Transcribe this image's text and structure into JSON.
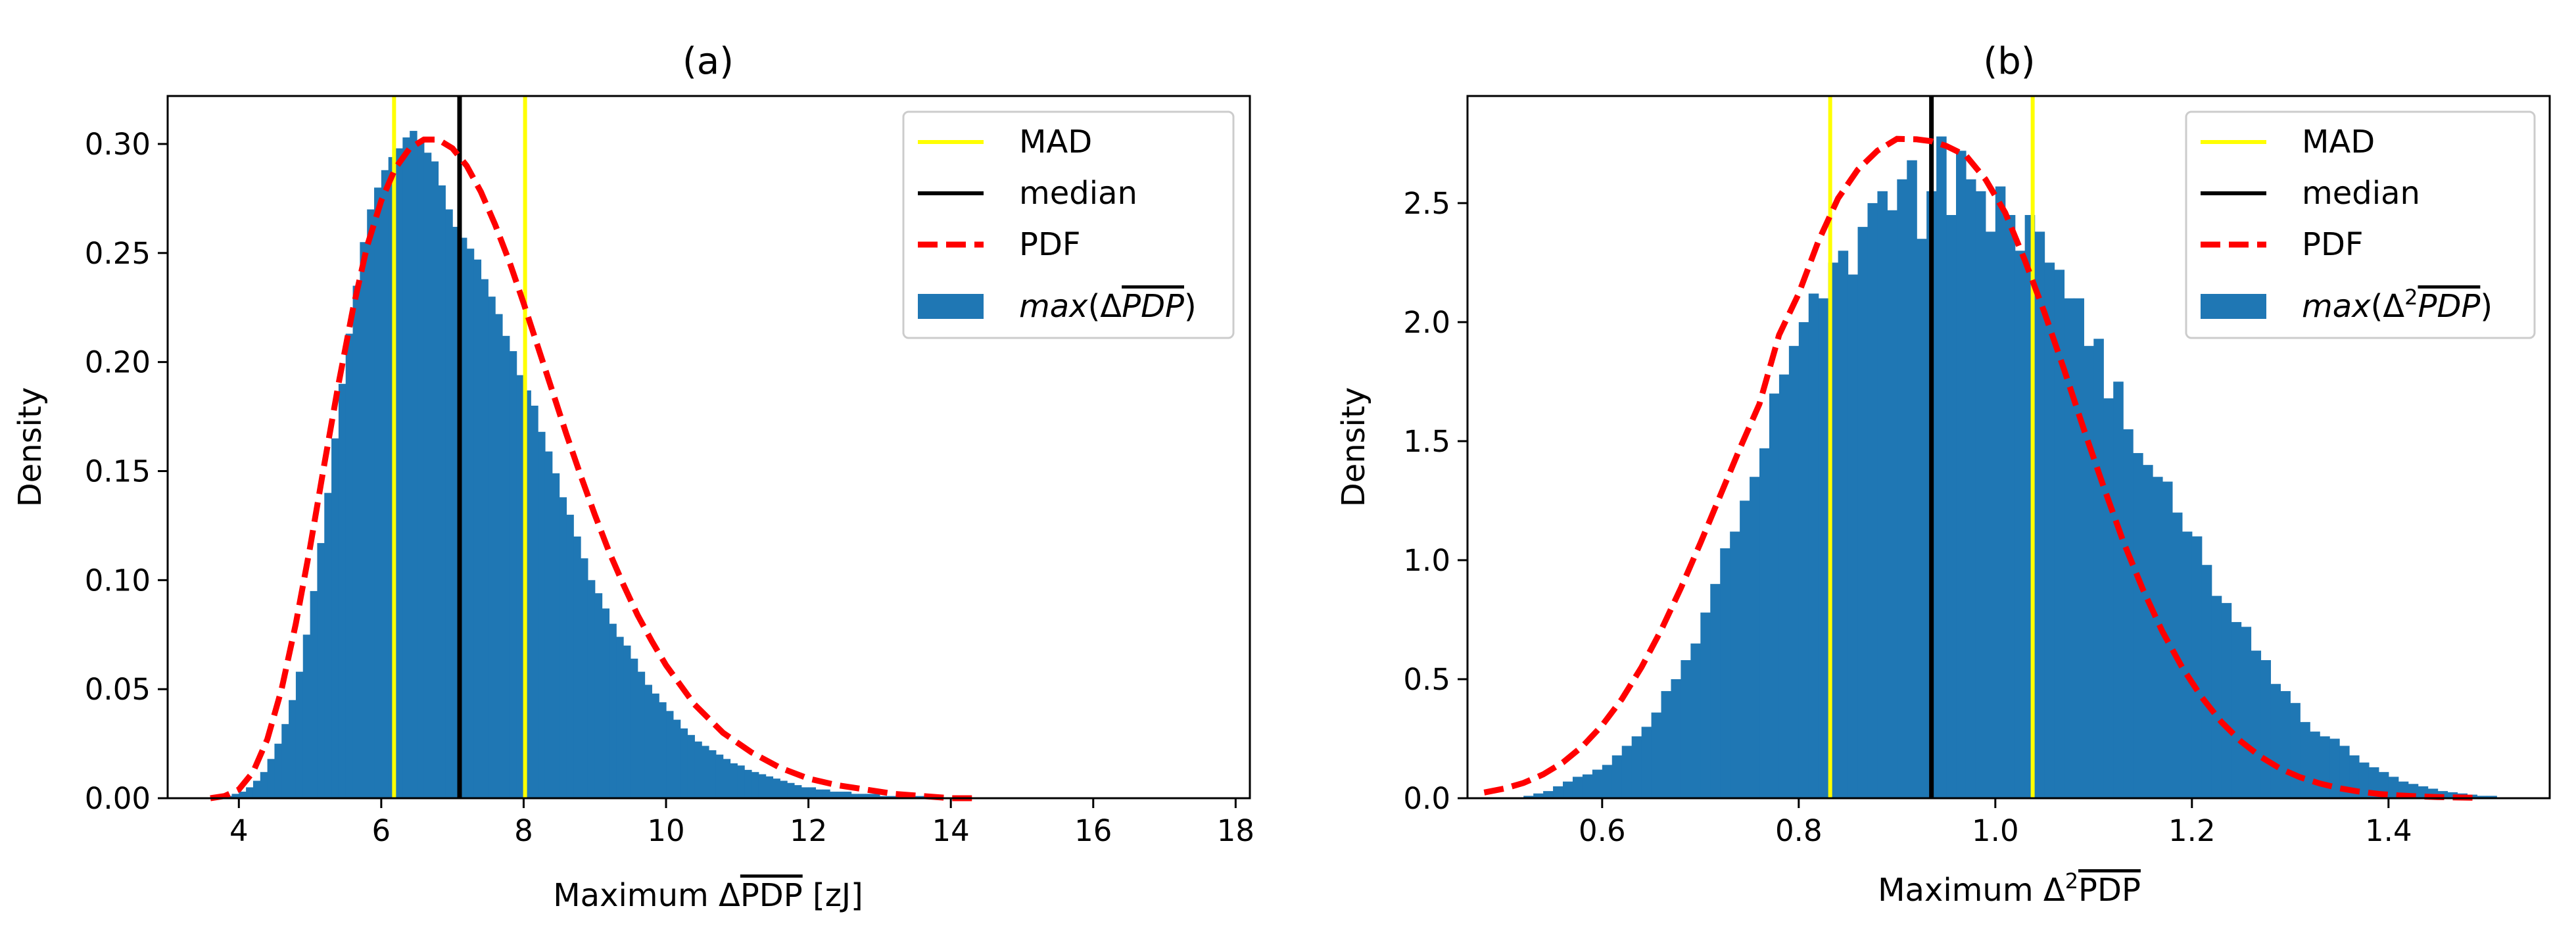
{
  "chart_data": [
    {
      "type": "histogram",
      "title": "(a)",
      "xlabel": "Maximum ΔPDP [zJ]",
      "xlabel_parts": {
        "prefix": "Maximum Δ",
        "sup": "",
        "over": "PDP",
        "suffix": " [zJ]"
      },
      "ylabel": "Density",
      "xlim": [
        3.0,
        18.2
      ],
      "ylim": [
        0,
        0.322
      ],
      "xticks": [
        4,
        6,
        8,
        10,
        12,
        14,
        16,
        18
      ],
      "xtick_labels": [
        "4",
        "6",
        "8",
        "10",
        "12",
        "14",
        "16",
        "18"
      ],
      "yticks": [
        0.0,
        0.05,
        0.1,
        0.15,
        0.2,
        0.25,
        0.3
      ],
      "ytick_labels": [
        "0.00",
        "0.05",
        "0.10",
        "0.15",
        "0.20",
        "0.25",
        "0.30"
      ],
      "hist": {
        "bin_start": 3.7,
        "bin_width": 0.1,
        "density": [
          0.0,
          0.001,
          0.002,
          0.003,
          0.005,
          0.008,
          0.012,
          0.018,
          0.025,
          0.034,
          0.045,
          0.058,
          0.075,
          0.095,
          0.117,
          0.14,
          0.165,
          0.19,
          0.213,
          0.235,
          0.255,
          0.27,
          0.28,
          0.288,
          0.294,
          0.298,
          0.303,
          0.306,
          0.301,
          0.296,
          0.292,
          0.281,
          0.27,
          0.262,
          0.257,
          0.252,
          0.247,
          0.238,
          0.23,
          0.222,
          0.212,
          0.205,
          0.194,
          0.187,
          0.18,
          0.168,
          0.159,
          0.149,
          0.138,
          0.13,
          0.12,
          0.11,
          0.1,
          0.094,
          0.087,
          0.08,
          0.074,
          0.07,
          0.064,
          0.058,
          0.052,
          0.048,
          0.044,
          0.04,
          0.036,
          0.032,
          0.029,
          0.026,
          0.024,
          0.022,
          0.02,
          0.018,
          0.016,
          0.015,
          0.013,
          0.012,
          0.011,
          0.01,
          0.009,
          0.008,
          0.007,
          0.006,
          0.005,
          0.005,
          0.004,
          0.004,
          0.003,
          0.003,
          0.003,
          0.002,
          0.002,
          0.002,
          0.002,
          0.001,
          0.001,
          0.001,
          0.001,
          0.001,
          0.001,
          0.001,
          0.001
        ]
      },
      "pdf": {
        "x": [
          3.6,
          3.8,
          4.0,
          4.2,
          4.4,
          4.6,
          4.8,
          5.0,
          5.2,
          5.4,
          5.6,
          5.8,
          6.0,
          6.2,
          6.4,
          6.6,
          6.8,
          7.0,
          7.2,
          7.4,
          7.6,
          7.8,
          8.0,
          8.2,
          8.4,
          8.6,
          8.8,
          9.0,
          9.2,
          9.4,
          9.6,
          9.8,
          10.0,
          10.4,
          10.8,
          11.2,
          11.6,
          12.0,
          12.4,
          12.8,
          13.2,
          13.6,
          14.0,
          14.3
        ],
        "y": [
          0.0,
          0.001,
          0.004,
          0.012,
          0.027,
          0.05,
          0.08,
          0.115,
          0.153,
          0.19,
          0.224,
          0.253,
          0.274,
          0.289,
          0.298,
          0.302,
          0.302,
          0.298,
          0.29,
          0.278,
          0.263,
          0.246,
          0.227,
          0.207,
          0.187,
          0.167,
          0.148,
          0.13,
          0.113,
          0.098,
          0.084,
          0.072,
          0.061,
          0.043,
          0.03,
          0.021,
          0.014,
          0.009,
          0.006,
          0.004,
          0.002,
          0.001,
          0.0,
          0.0
        ]
      },
      "median": 7.1,
      "mad": [
        6.18,
        8.02
      ],
      "legend": {
        "position": "top-right",
        "entries": [
          "MAD",
          "median",
          "PDF"
        ],
        "hist_label_parts": {
          "pre": "max",
          "open": "(Δ",
          "sup": "",
          "over": "PDP",
          "close": ")"
        }
      },
      "colors": {
        "bars": "#1f77b4",
        "median": "#000000",
        "mad": "#ffff00",
        "pdf": "#ff0000"
      }
    },
    {
      "type": "histogram",
      "title": "(b)",
      "xlabel": "Maximum Δ²PDP",
      "xlabel_parts": {
        "prefix": "Maximum Δ",
        "sup": "2",
        "over": "PDP",
        "suffix": ""
      },
      "ylabel": "Density",
      "xlim": [
        0.463,
        1.564
      ],
      "ylim": [
        0,
        2.95
      ],
      "xticks": [
        0.6,
        0.8,
        1.0,
        1.2,
        1.4
      ],
      "xtick_labels": [
        "0.6",
        "0.8",
        "1.0",
        "1.2",
        "1.4"
      ],
      "yticks": [
        0.0,
        0.5,
        1.0,
        1.5,
        2.0,
        2.5
      ],
      "ytick_labels": [
        "0.0",
        "0.5",
        "1.0",
        "1.5",
        "2.0",
        "2.5"
      ],
      "hist": {
        "bin_start": 0.52,
        "bin_width": 0.01,
        "density": [
          0.01,
          0.02,
          0.03,
          0.05,
          0.07,
          0.09,
          0.1,
          0.12,
          0.14,
          0.18,
          0.22,
          0.26,
          0.3,
          0.36,
          0.45,
          0.5,
          0.58,
          0.65,
          0.78,
          0.9,
          1.05,
          1.12,
          1.25,
          1.35,
          1.47,
          1.7,
          1.78,
          1.9,
          2.0,
          2.12,
          2.1,
          2.25,
          2.3,
          2.2,
          2.4,
          2.5,
          2.55,
          2.47,
          2.6,
          2.68,
          2.35,
          2.55,
          2.78,
          2.45,
          2.72,
          2.6,
          2.55,
          2.38,
          2.57,
          2.45,
          2.3,
          2.45,
          2.38,
          2.25,
          2.22,
          2.1,
          2.1,
          1.9,
          1.93,
          1.68,
          1.75,
          1.55,
          1.45,
          1.4,
          1.35,
          1.33,
          1.2,
          1.12,
          1.1,
          0.98,
          0.85,
          0.82,
          0.74,
          0.72,
          0.62,
          0.58,
          0.48,
          0.45,
          0.4,
          0.32,
          0.28,
          0.26,
          0.25,
          0.22,
          0.18,
          0.15,
          0.13,
          0.11,
          0.09,
          0.07,
          0.06,
          0.05,
          0.04,
          0.03,
          0.025,
          0.02,
          0.015,
          0.01,
          0.01
        ]
      },
      "pdf": {
        "x": [
          0.48,
          0.5,
          0.52,
          0.54,
          0.56,
          0.58,
          0.6,
          0.62,
          0.64,
          0.66,
          0.68,
          0.7,
          0.72,
          0.74,
          0.76,
          0.78,
          0.8,
          0.82,
          0.84,
          0.86,
          0.88,
          0.9,
          0.92,
          0.935,
          0.95,
          0.97,
          0.99,
          1.01,
          1.03,
          1.05,
          1.07,
          1.09,
          1.11,
          1.13,
          1.15,
          1.17,
          1.19,
          1.21,
          1.23,
          1.25,
          1.27,
          1.29,
          1.31,
          1.33,
          1.35,
          1.37,
          1.39,
          1.41,
          1.43,
          1.45,
          1.47,
          1.49
        ],
        "y": [
          0.024,
          0.04,
          0.064,
          0.1,
          0.15,
          0.218,
          0.306,
          0.416,
          0.55,
          0.706,
          0.882,
          1.072,
          1.27,
          1.468,
          1.656,
          1.946,
          2.12,
          2.34,
          2.52,
          2.64,
          2.72,
          2.77,
          2.768,
          2.76,
          2.74,
          2.7,
          2.6,
          2.46,
          2.26,
          2.04,
          1.8,
          1.55,
          1.31,
          1.08,
          0.878,
          0.7,
          0.55,
          0.424,
          0.32,
          0.238,
          0.174,
          0.124,
          0.088,
          0.062,
          0.042,
          0.028,
          0.018,
          0.012,
          0.008,
          0.005,
          0.003,
          0.002
        ]
      },
      "median": 0.935,
      "mad": [
        0.832,
        1.038
      ],
      "legend": {
        "position": "top-right",
        "entries": [
          "MAD",
          "median",
          "PDF"
        ],
        "hist_label_parts": {
          "pre": "max",
          "open": "(Δ",
          "sup": "2",
          "over": "PDP",
          "close": ")"
        }
      },
      "colors": {
        "bars": "#1f77b4",
        "median": "#000000",
        "mad": "#ffff00",
        "pdf": "#ff0000"
      }
    }
  ]
}
